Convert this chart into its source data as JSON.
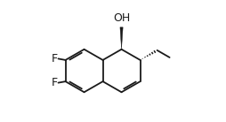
{
  "bg_color": "#ffffff",
  "line_color": "#1a1a1a",
  "line_width": 1.3,
  "font_size_label": 9.0,
  "label_color": "#1a1a1a",
  "figsize": [
    2.54,
    1.38
  ],
  "dpi": 100,
  "r": 0.165,
  "rcx": 0.565,
  "rcy": 0.44,
  "xlim": [
    0.02,
    0.98
  ],
  "ylim": [
    0.05,
    0.98
  ]
}
